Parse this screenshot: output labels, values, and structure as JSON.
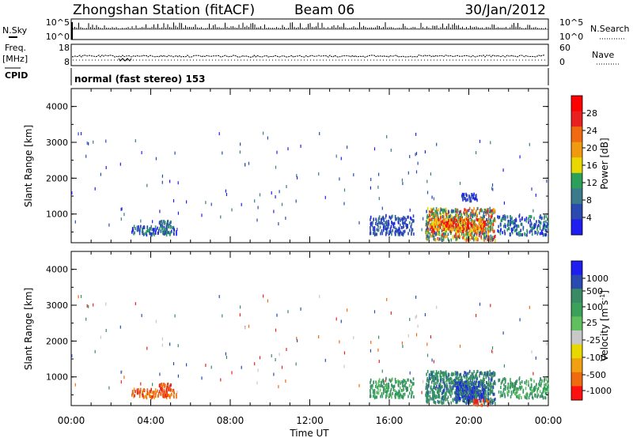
{
  "header": {
    "title": "Zhongshan Station (fitACF)",
    "beam": "Beam 06",
    "date": "30/Jan/2012"
  },
  "top_panel": {
    "left_label": "N.Sky",
    "left_ticks": [
      "10^5",
      "10^0"
    ],
    "right_label": "N.Search",
    "right_ticks": [
      "10^5",
      "10^0"
    ]
  },
  "freq_panel": {
    "left_label_1": "Freq.",
    "left_label_2": "[MHz]",
    "left_ticks": [
      "18",
      "8"
    ],
    "right_label": "Nave",
    "right_ticks": [
      "60",
      "0"
    ]
  },
  "cpid": {
    "label": "CPID",
    "value": "normal (fast stereo) 153"
  },
  "colors": {
    "power_scale": [
      "#1e1ef0",
      "#2a4ab0",
      "#3a7a8a",
      "#2aa05a",
      "#e8d800",
      "#f09a10",
      "#f06a10",
      "#e82020",
      "#ff0000"
    ],
    "velocity_scale": [
      "#1e1ef0",
      "#2a4ab0",
      "#3a8a66",
      "#2aa05a",
      "#60c060",
      "#c8c8c8",
      "#e8d800",
      "#f09a10",
      "#f06a10",
      "#e82020",
      "#ff0000"
    ]
  },
  "chart_data": [
    {
      "type": "heatmap",
      "name_hint": "power",
      "ylabel": "Slant Range [km]",
      "ylim": [
        200,
        4500
      ],
      "y_ticks": [
        "1000",
        "2000",
        "3000",
        "4000"
      ],
      "x_ticks": [
        "00:00",
        "04:00",
        "08:00",
        "12:00",
        "16:00",
        "20:00",
        "00:00"
      ],
      "colorbar_label": "Power [dB]",
      "colorbar_ticks": [
        "4",
        "8",
        "12",
        "16",
        "20",
        "24",
        "28"
      ]
    },
    {
      "type": "heatmap",
      "name_hint": "velocity",
      "ylabel": "Slant Range [km]",
      "ylim": [
        200,
        4500
      ],
      "y_ticks": [
        "1000",
        "2000",
        "3000",
        "4000"
      ],
      "x_ticks": [
        "00:00",
        "04:00",
        "08:00",
        "12:00",
        "16:00",
        "20:00",
        "00:00"
      ],
      "xlabel": "Time UT",
      "colorbar_label": "Velocity [m s",
      "colorbar_label_sup": "-1",
      "colorbar_label_end": "]",
      "colorbar_ticks": [
        "1000",
        "500",
        "100",
        "25",
        "-25",
        "-100",
        "-500",
        "-1000"
      ]
    }
  ]
}
